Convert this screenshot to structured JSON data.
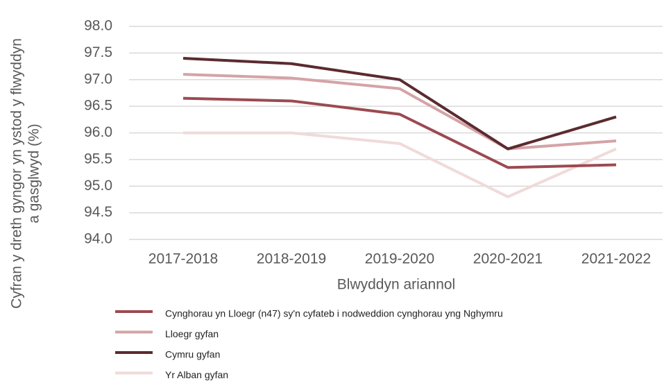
{
  "chart_data": {
    "type": "line",
    "ylabel": [
      "Cyfran y dreth gyngor yn ystod y flwyddyn",
      "a gasglwyd (%)"
    ],
    "xlabel": "Blwyddyn ariannol",
    "categories": [
      "2017-2018",
      "2018-2019",
      "2019-2020",
      "2020-2021",
      "2021-2022"
    ],
    "series": [
      {
        "name": "Cynghorau yn Lloegr (n47) sy'n cyfateb i nodweddion cynghorau yng Nghymru",
        "color": "#9c4a51",
        "values": [
          96.65,
          96.6,
          96.35,
          95.35,
          95.4
        ]
      },
      {
        "name": "Lloegr gyfan",
        "color": "#d4a3a6",
        "values": [
          97.1,
          97.03,
          96.83,
          95.7,
          95.85
        ]
      },
      {
        "name": "Cymru gyfan",
        "color": "#5b2b2f",
        "values": [
          97.4,
          97.3,
          97.0,
          95.7,
          96.3
        ]
      },
      {
        "name": "Yr Alban gyfan",
        "color": "#f0dada",
        "values": [
          96.0,
          96.0,
          95.8,
          94.8,
          95.7
        ]
      }
    ],
    "ylim": [
      94,
      98
    ],
    "yticks": [
      {
        "value": 94,
        "label": "94.0"
      },
      {
        "value": 94.5,
        "label": "94.5"
      },
      {
        "value": 95,
        "label": "95.0"
      },
      {
        "value": 95.5,
        "label": "95.5"
      },
      {
        "value": 96,
        "label": "96.0"
      },
      {
        "value": 96.5,
        "label": "96.5"
      },
      {
        "value": 97,
        "label": "97.0"
      },
      {
        "value": 97.5,
        "label": "97.5"
      },
      {
        "value": 98,
        "label": "98.0"
      }
    ],
    "grid": true
  }
}
